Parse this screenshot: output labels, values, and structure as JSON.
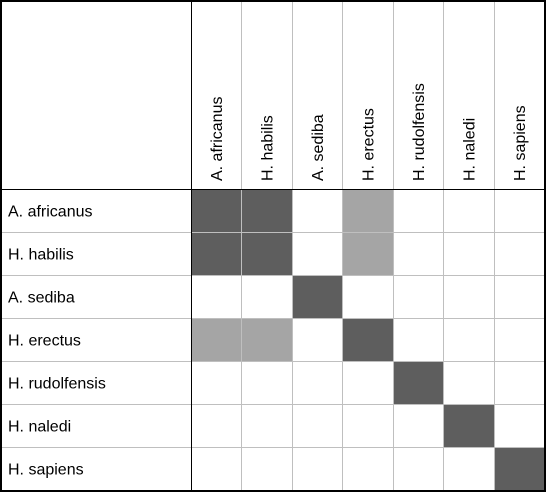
{
  "chart_data": {
    "type": "heatmap",
    "rows": [
      "A. africanus",
      "H. habilis",
      "A. sediba",
      "H. erectus",
      "H. rudolfensis",
      "H. naledi",
      "H. sapiens"
    ],
    "columns": [
      "A. africanus",
      "H. habilis",
      "A. sediba",
      "H. erectus",
      "H. rudolfensis",
      "H. naledi",
      "H. sapiens"
    ],
    "values": [
      [
        2,
        2,
        0,
        1,
        0,
        0,
        0
      ],
      [
        2,
        2,
        0,
        1,
        0,
        0,
        0
      ],
      [
        0,
        0,
        2,
        0,
        0,
        0,
        0
      ],
      [
        1,
        1,
        0,
        2,
        0,
        0,
        0
      ],
      [
        0,
        0,
        0,
        0,
        2,
        0,
        0
      ],
      [
        0,
        0,
        0,
        0,
        0,
        2,
        0
      ],
      [
        0,
        0,
        0,
        0,
        0,
        0,
        2
      ]
    ],
    "level_colors": [
      "#ffffff",
      "#a5a5a5",
      "#5e5e5e"
    ],
    "grid": true
  }
}
